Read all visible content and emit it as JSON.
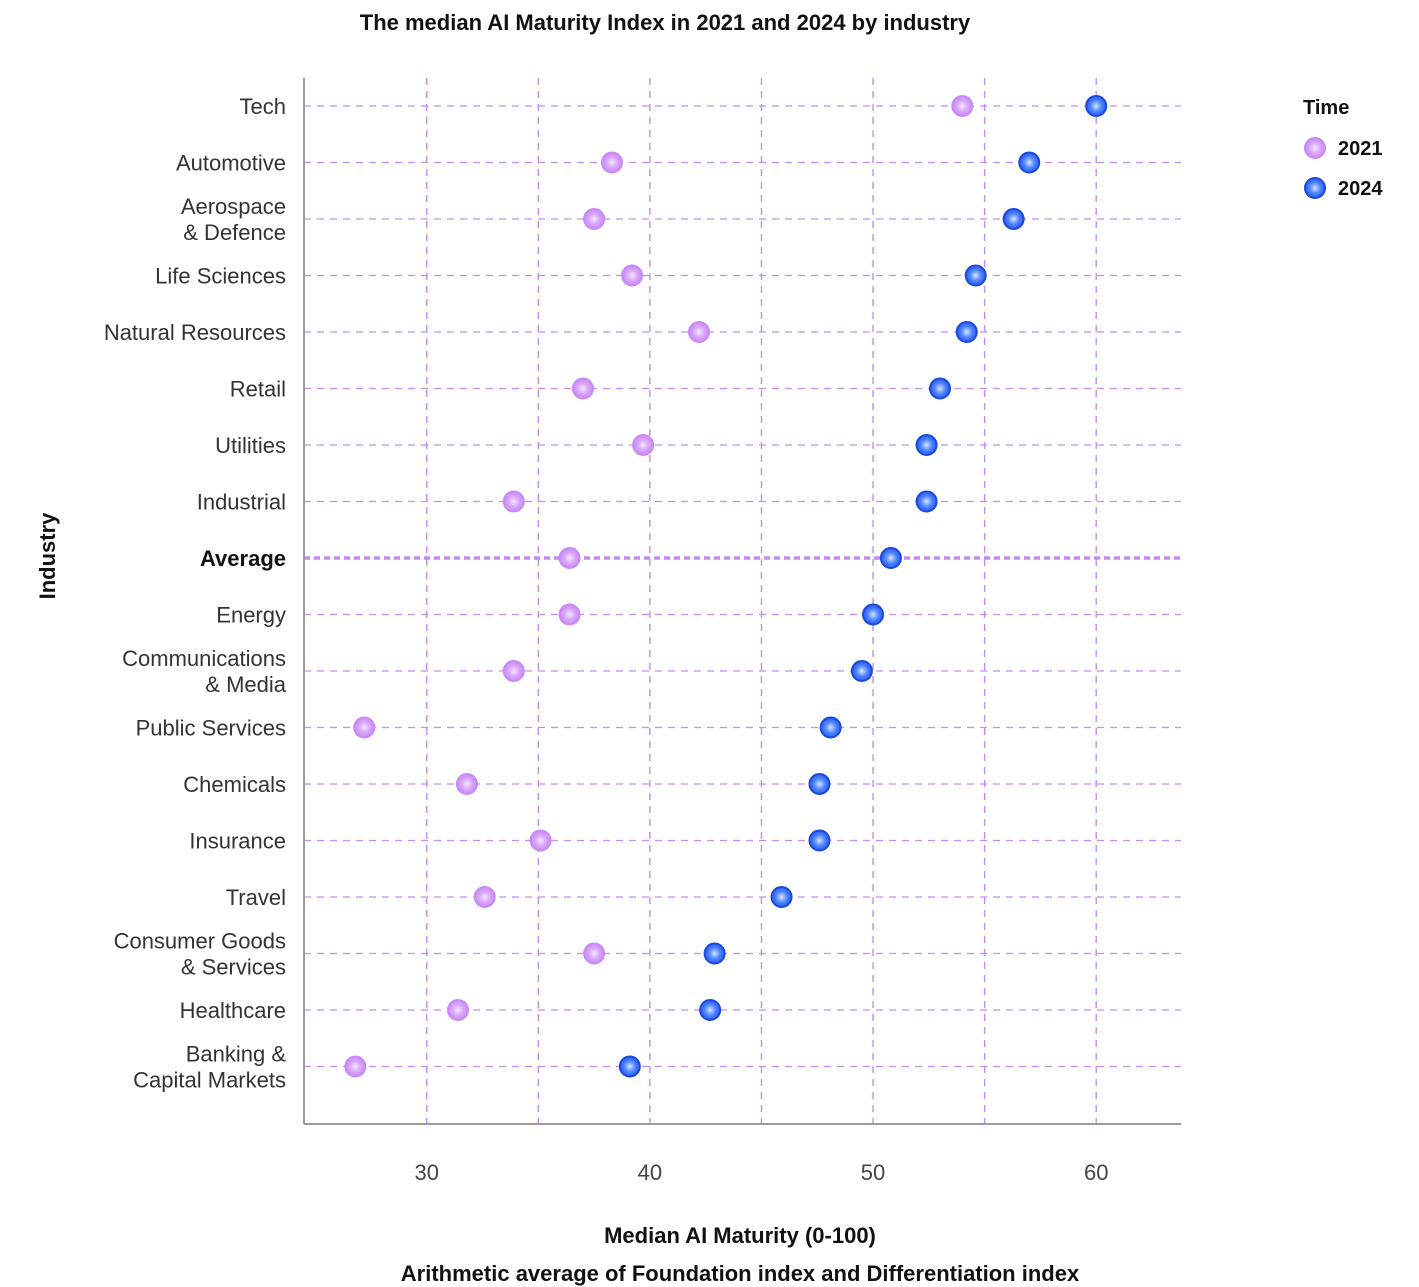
{
  "chart_data": {
    "type": "dumbbell",
    "title": "The median AI Maturity Index in 2021 and 2024 by industry",
    "ylabel": "Industry",
    "xlabel": "Median AI Maturity (0-100)",
    "xlabel_sub": "Arithmetic average of  Foundation index and Differentiation index",
    "xlim": [
      24.5,
      63.8
    ],
    "xticks": [
      30,
      40,
      50,
      60
    ],
    "grid": true,
    "legend": {
      "title": "Time",
      "placement": "top-right"
    },
    "colors": {
      "y2021": "#c98af5",
      "y2024": "#2a5cf0",
      "grid": "#c48cf2",
      "line": "#4f4fe0"
    },
    "series": [
      {
        "name": "2021",
        "values": [
          54.0,
          38.3,
          37.5,
          39.2,
          42.2,
          37.0,
          39.7,
          33.9,
          36.4,
          36.4,
          33.9,
          27.2,
          31.8,
          35.1,
          32.6,
          37.5,
          31.4,
          26.8
        ]
      },
      {
        "name": "2024",
        "values": [
          60.0,
          57.0,
          56.3,
          54.6,
          54.2,
          53.0,
          52.4,
          52.4,
          50.8,
          50.0,
          49.5,
          48.1,
          47.6,
          47.6,
          45.9,
          42.9,
          42.7,
          39.1
        ]
      }
    ],
    "categories": [
      {
        "lines": [
          "Tech"
        ],
        "average": false
      },
      {
        "lines": [
          "Automotive"
        ],
        "average": false
      },
      {
        "lines": [
          "Aerospace",
          "& Defence"
        ],
        "average": false
      },
      {
        "lines": [
          "Life Sciences"
        ],
        "average": false
      },
      {
        "lines": [
          "Natural Resources"
        ],
        "average": false
      },
      {
        "lines": [
          "Retail"
        ],
        "average": false
      },
      {
        "lines": [
          "Utilities"
        ],
        "average": false
      },
      {
        "lines": [
          "Industrial"
        ],
        "average": false
      },
      {
        "lines": [
          "Average"
        ],
        "average": true
      },
      {
        "lines": [
          "Energy"
        ],
        "average": false
      },
      {
        "lines": [
          "Communications",
          "& Media"
        ],
        "average": false
      },
      {
        "lines": [
          "Public Services"
        ],
        "average": false
      },
      {
        "lines": [
          "Chemicals"
        ],
        "average": false
      },
      {
        "lines": [
          "Insurance"
        ],
        "average": false
      },
      {
        "lines": [
          "Travel"
        ],
        "average": false
      },
      {
        "lines": [
          "Consumer Goods",
          "& Services"
        ],
        "average": false
      },
      {
        "lines": [
          "Healthcare"
        ],
        "average": false
      },
      {
        "lines": [
          "Banking &",
          "Capital Markets"
        ],
        "average": false
      }
    ]
  }
}
